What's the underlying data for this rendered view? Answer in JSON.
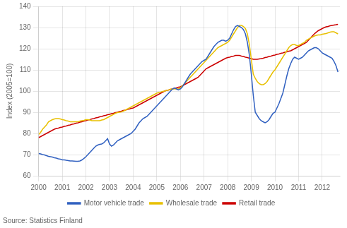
{
  "chart_data": {
    "type": "line",
    "ylabel": "Index (2005=100)",
    "source": "Source: Statistics Finland",
    "ylim": [
      60,
      140
    ],
    "yticks": [
      60,
      70,
      80,
      90,
      100,
      110,
      120,
      130,
      140
    ],
    "xlim": [
      2000.0,
      2012.75
    ],
    "xticks": [
      2000,
      2001,
      2002,
      2003,
      2004,
      2005,
      2006,
      2007,
      2008,
      2009,
      2010,
      2011,
      2012
    ],
    "grid": true,
    "legend": "bottom",
    "x": [
      2000.0,
      2000.083,
      2000.167,
      2000.25,
      2000.333,
      2000.417,
      2000.5,
      2000.583,
      2000.667,
      2000.75,
      2000.833,
      2000.917,
      2001.0,
      2001.083,
      2001.167,
      2001.25,
      2001.333,
      2001.417,
      2001.5,
      2001.583,
      2001.667,
      2001.75,
      2001.833,
      2001.917,
      2002.0,
      2002.083,
      2002.167,
      2002.25,
      2002.333,
      2002.417,
      2002.5,
      2002.583,
      2002.667,
      2002.75,
      2002.833,
      2002.917,
      2003.0,
      2003.083,
      2003.167,
      2003.25,
      2003.333,
      2003.417,
      2003.5,
      2003.583,
      2003.667,
      2003.75,
      2003.833,
      2003.917,
      2004.0,
      2004.083,
      2004.167,
      2004.25,
      2004.333,
      2004.417,
      2004.5,
      2004.583,
      2004.667,
      2004.75,
      2004.833,
      2004.917,
      2005.0,
      2005.083,
      2005.167,
      2005.25,
      2005.333,
      2005.417,
      2005.5,
      2005.583,
      2005.667,
      2005.75,
      2005.833,
      2005.917,
      2006.0,
      2006.083,
      2006.167,
      2006.25,
      2006.333,
      2006.417,
      2006.5,
      2006.583,
      2006.667,
      2006.75,
      2006.833,
      2006.917,
      2007.0,
      2007.083,
      2007.167,
      2007.25,
      2007.333,
      2007.417,
      2007.5,
      2007.583,
      2007.667,
      2007.75,
      2007.833,
      2007.917,
      2008.0,
      2008.083,
      2008.167,
      2008.25,
      2008.333,
      2008.417,
      2008.5,
      2008.583,
      2008.667,
      2008.75,
      2008.833,
      2008.917,
      2009.0,
      2009.083,
      2009.167,
      2009.25,
      2009.333,
      2009.417,
      2009.5,
      2009.583,
      2009.667,
      2009.75,
      2009.833,
      2009.917,
      2010.0,
      2010.083,
      2010.167,
      2010.25,
      2010.333,
      2010.417,
      2010.5,
      2010.583,
      2010.667,
      2010.75,
      2010.833,
      2010.917,
      2011.0,
      2011.083,
      2011.167,
      2011.25,
      2011.333,
      2011.417,
      2011.5,
      2011.583,
      2011.667,
      2011.75,
      2011.833,
      2011.917,
      2012.0,
      2012.083,
      2012.167,
      2012.25,
      2012.333,
      2012.417,
      2012.5,
      2012.583,
      2012.667
    ],
    "series": [
      {
        "name": "Motor vehicle trade",
        "color": "#3060c0",
        "values": [
          70.5,
          70.3,
          70.0,
          69.8,
          69.5,
          69.2,
          69.0,
          68.8,
          68.5,
          68.3,
          68.0,
          67.8,
          67.5,
          67.5,
          67.3,
          67.2,
          67.0,
          67.0,
          66.9,
          66.8,
          66.8,
          67.0,
          67.5,
          68.2,
          69.0,
          70.0,
          71.0,
          72.0,
          73.0,
          74.0,
          74.5,
          74.8,
          75.0,
          75.5,
          76.5,
          77.5,
          75.0,
          74.0,
          74.5,
          75.5,
          76.5,
          77.0,
          77.5,
          78.0,
          78.5,
          79.0,
          79.5,
          80.0,
          81.0,
          82.0,
          83.5,
          85.0,
          86.0,
          87.0,
          87.5,
          88.0,
          89.0,
          90.0,
          91.0,
          92.0,
          93.0,
          94.0,
          95.0,
          96.0,
          97.0,
          98.0,
          99.0,
          100.0,
          101.0,
          101.5,
          101.0,
          100.5,
          101.0,
          102.0,
          103.5,
          105.0,
          106.5,
          108.0,
          109.0,
          110.0,
          111.0,
          112.0,
          113.0,
          114.0,
          114.5,
          115.0,
          116.5,
          118.0,
          119.5,
          121.0,
          122.0,
          123.0,
          123.5,
          124.0,
          124.0,
          123.5,
          124.0,
          125.0,
          127.0,
          129.0,
          130.5,
          131.0,
          130.5,
          130.0,
          129.0,
          127.0,
          123.0,
          117.0,
          108.0,
          98.0,
          90.0,
          88.5,
          87.0,
          86.0,
          85.5,
          85.0,
          85.5,
          86.5,
          88.0,
          89.5,
          90.0,
          92.0,
          94.0,
          96.5,
          99.0,
          103.0,
          107.0,
          110.5,
          113.0,
          115.0,
          116.0,
          115.5,
          115.0,
          115.5,
          116.0,
          117.0,
          118.0,
          119.0,
          119.5,
          120.0,
          120.5,
          120.5,
          120.0,
          119.0,
          118.0,
          117.5,
          117.0,
          116.5,
          116.0,
          115.5,
          114.0,
          112.0,
          109.0
        ]
      },
      {
        "name": "Wholesale trade",
        "color": "#e8c000",
        "values": [
          79.5,
          80.5,
          82.0,
          83.0,
          84.0,
          85.5,
          86.0,
          86.5,
          86.8,
          87.0,
          87.0,
          86.8,
          86.5,
          86.3,
          86.0,
          85.8,
          85.5,
          85.5,
          85.5,
          85.5,
          85.5,
          85.8,
          86.0,
          86.2,
          86.5,
          86.5,
          86.3,
          86.0,
          86.0,
          86.0,
          86.0,
          86.0,
          86.3,
          86.5,
          87.0,
          87.5,
          88.0,
          88.5,
          89.0,
          89.5,
          89.8,
          90.0,
          90.2,
          90.5,
          91.0,
          91.5,
          92.0,
          92.5,
          93.0,
          93.5,
          94.0,
          94.5,
          95.0,
          95.5,
          96.0,
          96.5,
          97.0,
          97.5,
          98.0,
          98.5,
          99.0,
          99.3,
          99.5,
          99.8,
          100.0,
          100.3,
          100.5,
          100.8,
          101.0,
          101.0,
          101.0,
          101.0,
          101.5,
          102.5,
          103.5,
          104.5,
          105.5,
          106.5,
          107.5,
          108.5,
          109.5,
          110.5,
          111.5,
          112.5,
          113.5,
          114.5,
          115.5,
          116.5,
          117.5,
          118.5,
          119.5,
          120.5,
          121.0,
          121.5,
          122.0,
          122.5,
          123.0,
          124.0,
          125.5,
          127.0,
          128.5,
          130.0,
          131.0,
          131.0,
          130.5,
          129.5,
          127.0,
          122.0,
          115.0,
          108.0,
          106.0,
          104.5,
          103.5,
          103.0,
          103.0,
          103.5,
          104.5,
          106.0,
          107.5,
          109.0,
          110.0,
          111.5,
          113.0,
          114.5,
          116.0,
          117.5,
          119.0,
          120.5,
          121.5,
          122.0,
          122.0,
          121.5,
          121.5,
          122.0,
          122.5,
          123.0,
          124.0,
          124.5,
          125.0,
          125.5,
          126.0,
          126.3,
          126.5,
          126.5,
          126.8,
          127.0,
          127.2,
          127.5,
          127.8,
          128.0,
          128.0,
          127.5,
          127.0
        ]
      },
      {
        "name": "Retail trade",
        "color": "#cc0000",
        "values": [
          78.0,
          78.5,
          79.0,
          79.5,
          80.0,
          80.5,
          81.0,
          81.5,
          82.0,
          82.3,
          82.5,
          82.8,
          83.0,
          83.3,
          83.5,
          83.8,
          84.0,
          84.3,
          84.5,
          84.8,
          85.0,
          85.3,
          85.5,
          85.8,
          86.0,
          86.3,
          86.5,
          86.8,
          87.0,
          87.3,
          87.5,
          87.8,
          88.0,
          88.3,
          88.5,
          88.8,
          89.0,
          89.3,
          89.5,
          89.8,
          90.0,
          90.3,
          90.5,
          90.8,
          91.0,
          91.3,
          91.5,
          91.8,
          92.0,
          92.5,
          93.0,
          93.5,
          94.0,
          94.5,
          95.0,
          95.5,
          96.0,
          96.5,
          97.0,
          97.5,
          98.0,
          98.5,
          99.0,
          99.5,
          100.0,
          100.3,
          100.5,
          100.8,
          101.0,
          101.3,
          101.5,
          101.8,
          102.0,
          102.5,
          103.0,
          103.5,
          104.0,
          104.5,
          105.0,
          105.5,
          106.0,
          106.5,
          107.5,
          108.5,
          109.5,
          110.5,
          111.0,
          111.5,
          112.0,
          112.5,
          113.0,
          113.5,
          114.0,
          114.5,
          115.0,
          115.5,
          115.8,
          116.0,
          116.3,
          116.5,
          116.8,
          116.8,
          116.8,
          116.5,
          116.3,
          116.0,
          115.8,
          115.5,
          115.3,
          115.0,
          115.0,
          115.0,
          115.2,
          115.3,
          115.5,
          115.8,
          116.0,
          116.3,
          116.5,
          116.8,
          117.0,
          117.3,
          117.5,
          117.8,
          118.0,
          118.3,
          118.5,
          118.8,
          119.0,
          119.5,
          120.0,
          120.5,
          121.0,
          121.5,
          122.0,
          122.5,
          123.0,
          124.0,
          125.0,
          126.0,
          127.0,
          127.8,
          128.5,
          129.0,
          129.5,
          130.0,
          130.3,
          130.5,
          130.8,
          131.0,
          131.2,
          131.3,
          131.5
        ]
      }
    ]
  }
}
